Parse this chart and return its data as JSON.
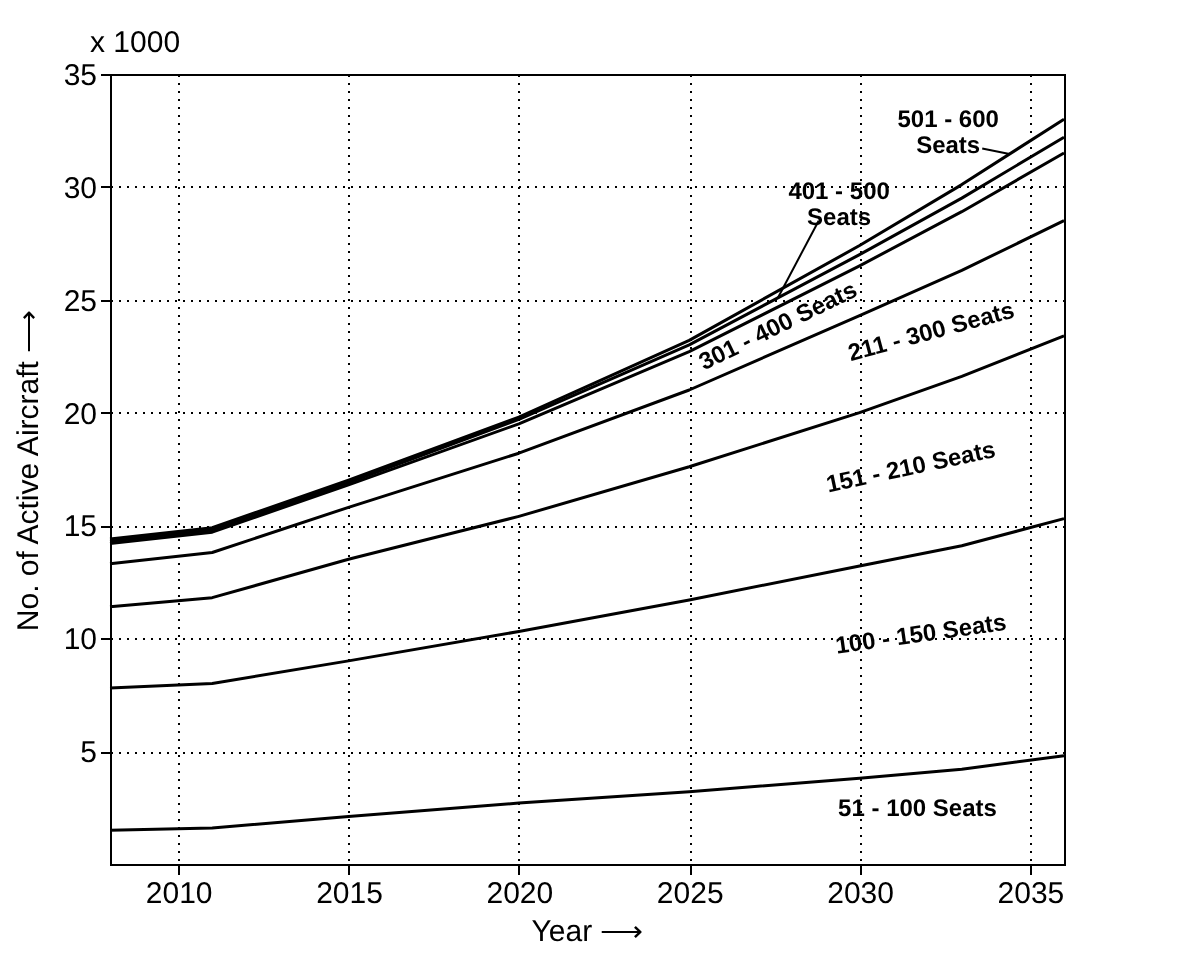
{
  "chart_data": {
    "type": "line",
    "xlabel": "Year ⟶",
    "ylabel": "No. of Active Aircraft ⟶",
    "annotations": [
      "x 1000"
    ],
    "x": [
      2008,
      2011,
      2015,
      2020,
      2025,
      2030,
      2033,
      2036
    ],
    "xlim": [
      2008,
      2036
    ],
    "xticks": [
      2010,
      2015,
      2020,
      2025,
      2030,
      2035
    ],
    "ylim": [
      0,
      35
    ],
    "yticks": [
      5,
      10,
      15,
      20,
      25,
      30,
      35
    ],
    "grid": true,
    "legend": false,
    "marker": "none",
    "line_style": "solid",
    "series": [
      {
        "name": "51 - 100 Seats",
        "color": "#000000",
        "values": [
          1.5,
          1.6,
          2.1,
          2.7,
          3.2,
          3.8,
          4.2,
          4.8
        ]
      },
      {
        "name": "100 - 150 Seats",
        "color": "#000000",
        "values": [
          7.8,
          8.0,
          9.0,
          10.3,
          11.7,
          13.2,
          14.1,
          15.3
        ]
      },
      {
        "name": "151 - 210 Seats",
        "color": "#000000",
        "values": [
          11.4,
          11.8,
          13.5,
          15.4,
          17.6,
          20.0,
          21.6,
          23.4
        ]
      },
      {
        "name": "211 - 300 Seats",
        "color": "#000000",
        "values": [
          13.3,
          13.8,
          15.8,
          18.2,
          21.0,
          24.3,
          26.3,
          28.5
        ]
      },
      {
        "name": "301 - 400 Seats",
        "color": "#000000",
        "values": [
          14.2,
          14.7,
          16.8,
          19.5,
          22.7,
          26.5,
          28.9,
          31.5
        ]
      },
      {
        "name": "401 - 500 Seats",
        "color": "#000000",
        "values": [
          14.3,
          14.8,
          16.9,
          19.7,
          23.0,
          27.0,
          29.5,
          32.2
        ]
      },
      {
        "name": "501 - 600 Seats",
        "color": "#000000",
        "values": [
          14.4,
          14.9,
          17.0,
          19.8,
          23.2,
          27.4,
          30.1,
          33.0
        ]
      }
    ]
  }
}
